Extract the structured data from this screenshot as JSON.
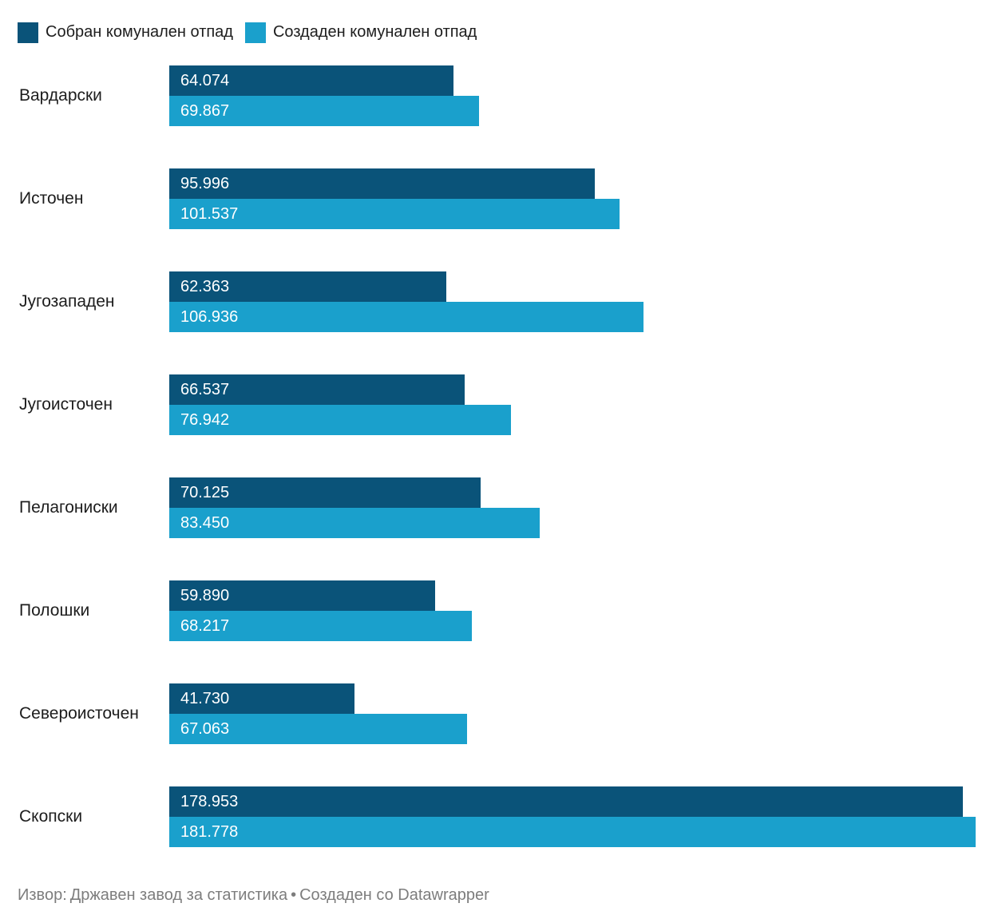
{
  "legend": {
    "items": [
      {
        "label": "Собран комунален отпад",
        "color": "#0a5379"
      },
      {
        "label": "Создаден комунален отпад",
        "color": "#1aa0cc"
      }
    ]
  },
  "footer": {
    "source_label": "Извор:",
    "source": "Државен завод за статистика",
    "separator": "•",
    "credit": "Создаден со Datawrapper"
  },
  "chart_data": {
    "type": "bar",
    "orientation": "horizontal",
    "grouped": true,
    "grid": false,
    "legend_position": "top",
    "axis_labels_visible": false,
    "value_labels_position": "inside-start",
    "number_format": "thousands separated by dots",
    "xlim": [
      0,
      181778
    ],
    "max_value": 181778,
    "categories": [
      "Вардарски",
      "Источен",
      "Југозападен",
      "Југоисточен",
      "Пелагониски",
      "Полошки",
      "Североисточен",
      "Скопски"
    ],
    "series": [
      {
        "name": "Собран комунален отпад",
        "color": "#0a5379",
        "values": [
          64074,
          95996,
          62363,
          66537,
          70125,
          59890,
          41730,
          178953
        ],
        "display_values": [
          "64.074",
          "95.996",
          "62.363",
          "66.537",
          "70.125",
          "59.890",
          "41.730",
          "178.953"
        ]
      },
      {
        "name": "Создаден комунален отпад",
        "color": "#1aa0cc",
        "values": [
          69867,
          101537,
          106936,
          76942,
          83450,
          68217,
          67063,
          181778
        ],
        "display_values": [
          "69.867",
          "101.537",
          "106.936",
          "76.942",
          "83.450",
          "68.217",
          "67.063",
          "181.778"
        ]
      }
    ]
  }
}
